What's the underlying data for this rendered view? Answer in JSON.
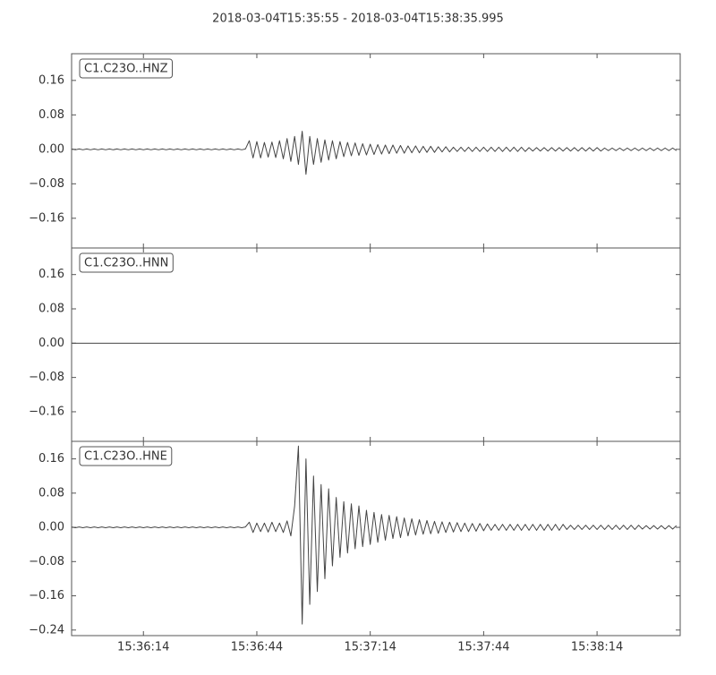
{
  "title": "2018-03-04T15:35:55  -  2018-03-04T15:38:35.995",
  "chart_data": [
    {
      "type": "line",
      "label": "C1.C23O..HNZ",
      "color": "#444444",
      "x": [
        0,
        1,
        2,
        3,
        4,
        5,
        6,
        7,
        8,
        9,
        10,
        11,
        12,
        13,
        14,
        15,
        16,
        17,
        18,
        19,
        20,
        21,
        22,
        23,
        24,
        25,
        26,
        27,
        28,
        29,
        30,
        31,
        32,
        33,
        34,
        35,
        36,
        37,
        38,
        39,
        40,
        41,
        42,
        43,
        44,
        45,
        46,
        47,
        48,
        49,
        50,
        51,
        52,
        53,
        54,
        55,
        56,
        57,
        58,
        59,
        60,
        61,
        62,
        63,
        64,
        65,
        66,
        67,
        68,
        69,
        70,
        71,
        72,
        73,
        74,
        75,
        76,
        77,
        78,
        79,
        80,
        81,
        82,
        83,
        84,
        85,
        86,
        87,
        88,
        89,
        90,
        91,
        92,
        93,
        94,
        95,
        96,
        97,
        98,
        99,
        100,
        101,
        102,
        103,
        104,
        105,
        106,
        107,
        108,
        109,
        110,
        111,
        112,
        113,
        114,
        115,
        116,
        117,
        118,
        119,
        120,
        121,
        122,
        123,
        124,
        125,
        126,
        127,
        128,
        129,
        130,
        131,
        132,
        133,
        134,
        135,
        136,
        137,
        138,
        139,
        140,
        141,
        142,
        143,
        144,
        145,
        146,
        147,
        148,
        149,
        150,
        151,
        152,
        153,
        154,
        155,
        156,
        157,
        158,
        159,
        160
      ],
      "values": [
        0.001,
        -0.001,
        0.001,
        -0.001,
        0.001,
        -0.001,
        0.001,
        -0.001,
        0.001,
        -0.001,
        0.001,
        -0.001,
        0.001,
        -0.001,
        0.001,
        -0.001,
        0.001,
        -0.001,
        0.001,
        -0.001,
        0.001,
        -0.001,
        0.001,
        -0.001,
        0.001,
        -0.001,
        0.001,
        -0.001,
        0.001,
        -0.001,
        0.001,
        -0.001,
        0.001,
        -0.001,
        0.001,
        -0.001,
        0.001,
        -0.001,
        0.001,
        -0.001,
        0.001,
        -0.001,
        0.001,
        -0.001,
        0.001,
        -0.001,
        0.001,
        0.02,
        -0.02,
        0.018,
        -0.02,
        0.016,
        -0.018,
        0.017,
        -0.019,
        0.02,
        -0.022,
        0.025,
        -0.028,
        0.03,
        -0.035,
        0.042,
        -0.058,
        0.03,
        -0.035,
        0.025,
        -0.03,
        0.022,
        -0.025,
        0.02,
        -0.022,
        0.018,
        -0.017,
        0.016,
        -0.015,
        0.015,
        -0.014,
        0.013,
        -0.013,
        0.012,
        -0.012,
        0.011,
        -0.011,
        0.01,
        -0.01,
        0.01,
        -0.009,
        0.009,
        -0.009,
        0.008,
        -0.008,
        0.008,
        -0.008,
        0.007,
        -0.007,
        0.007,
        -0.007,
        0.006,
        -0.006,
        0.006,
        -0.006,
        0.005,
        -0.005,
        0.005,
        -0.005,
        0.005,
        -0.005,
        0.005,
        -0.005,
        0.005,
        -0.005,
        0.005,
        -0.005,
        0.005,
        -0.005,
        0.005,
        -0.005,
        0.005,
        -0.005,
        0.005,
        -0.005,
        0.004,
        -0.004,
        0.004,
        -0.004,
        0.004,
        -0.004,
        0.004,
        -0.004,
        0.004,
        -0.004,
        0.004,
        -0.004,
        0.004,
        -0.004,
        0.004,
        -0.004,
        0.004,
        -0.004,
        0.004,
        -0.004,
        0.003,
        -0.003,
        0.003,
        -0.003,
        0.003,
        -0.003,
        0.003,
        -0.003,
        0.003,
        -0.003,
        0.003,
        -0.003,
        0.003,
        -0.003,
        0.003,
        -0.003,
        0.003,
        -0.003,
        0.003,
        -0.003
      ],
      "xlim": [
        0,
        160.995
      ],
      "ylim": [
        -0.229,
        0.222
      ],
      "yticks": [
        {
          "value": -0.16,
          "label": "−0.16"
        },
        {
          "value": -0.08,
          "label": "−0.08"
        },
        {
          "value": 0,
          "label": "0.00"
        },
        {
          "value": 0.08,
          "label": "0.08"
        },
        {
          "value": 0.16,
          "label": "0.16"
        }
      ]
    },
    {
      "type": "line",
      "label": "C1.C23O..HNN",
      "color": "#444444",
      "x": [
        0,
        1,
        2,
        3,
        4,
        5,
        6,
        7,
        8,
        9,
        10,
        11,
        12,
        13,
        14,
        15,
        16,
        17,
        18,
        19,
        20,
        21,
        22,
        23,
        24,
        25,
        26,
        27,
        28,
        29,
        30,
        31,
        32,
        33,
        34,
        35,
        36,
        37,
        38,
        39,
        40,
        41,
        42,
        43,
        44,
        45,
        46,
        47,
        48,
        49,
        50,
        51,
        52,
        53,
        54,
        55,
        56,
        57,
        58,
        59,
        60,
        61,
        62,
        63,
        64,
        65,
        66,
        67,
        68,
        69,
        70,
        71,
        72,
        73,
        74,
        75,
        76,
        77,
        78,
        79,
        80,
        81,
        82,
        83,
        84,
        85,
        86,
        87,
        88,
        89,
        90,
        91,
        92,
        93,
        94,
        95,
        96,
        97,
        98,
        99,
        100,
        101,
        102,
        103,
        104,
        105,
        106,
        107,
        108,
        109,
        110,
        111,
        112,
        113,
        114,
        115,
        116,
        117,
        118,
        119,
        120,
        121,
        122,
        123,
        124,
        125,
        126,
        127,
        128,
        129,
        130,
        131,
        132,
        133,
        134,
        135,
        136,
        137,
        138,
        139,
        140,
        141,
        142,
        143,
        144,
        145,
        146,
        147,
        148,
        149,
        150,
        151,
        152,
        153,
        154,
        155,
        156,
        157,
        158,
        159,
        160
      ],
      "values": [
        0,
        0,
        0,
        0,
        0,
        0,
        0,
        0,
        0,
        0,
        0,
        0,
        0,
        0,
        0,
        0,
        0,
        0,
        0,
        0,
        0,
        0,
        0,
        0,
        0,
        0,
        0,
        0,
        0,
        0,
        0,
        0,
        0,
        0,
        0,
        0,
        0,
        0,
        0,
        0,
        0,
        0,
        0,
        0,
        0,
        0,
        0,
        0,
        0,
        0,
        0,
        0,
        0,
        0,
        0,
        0,
        0,
        0,
        0,
        0,
        0,
        0,
        0,
        0,
        0,
        0,
        0,
        0,
        0,
        0,
        0,
        0,
        0,
        0,
        0,
        0,
        0,
        0,
        0,
        0,
        0,
        0,
        0,
        0,
        0,
        0,
        0,
        0,
        0,
        0,
        0,
        0,
        0,
        0,
        0,
        0,
        0,
        0,
        0,
        0,
        0,
        0,
        0,
        0,
        0,
        0,
        0,
        0,
        0,
        0,
        0,
        0,
        0,
        0,
        0,
        0,
        0,
        0,
        0,
        0,
        0,
        0,
        0,
        0,
        0,
        0,
        0,
        0,
        0,
        0,
        0,
        0,
        0,
        0,
        0,
        0,
        0,
        0,
        0,
        0,
        0,
        0,
        0,
        0,
        0,
        0,
        0,
        0,
        0,
        0,
        0,
        0,
        0,
        0,
        0,
        0,
        0,
        0,
        0,
        0,
        0
      ],
      "xlim": [
        0,
        160.995
      ],
      "ylim": [
        -0.229,
        0.222
      ],
      "yticks": [
        {
          "value": -0.16,
          "label": "−0.16"
        },
        {
          "value": -0.08,
          "label": "−0.08"
        },
        {
          "value": 0,
          "label": "0.00"
        },
        {
          "value": 0.08,
          "label": "0.08"
        },
        {
          "value": 0.16,
          "label": "0.16"
        }
      ]
    },
    {
      "type": "line",
      "label": "C1.C23O..HNE",
      "color": "#444444",
      "x": [
        0,
        1,
        2,
        3,
        4,
        5,
        6,
        7,
        8,
        9,
        10,
        11,
        12,
        13,
        14,
        15,
        16,
        17,
        18,
        19,
        20,
        21,
        22,
        23,
        24,
        25,
        26,
        27,
        28,
        29,
        30,
        31,
        32,
        33,
        34,
        35,
        36,
        37,
        38,
        39,
        40,
        41,
        42,
        43,
        44,
        45,
        46,
        47,
        48,
        49,
        50,
        51,
        52,
        53,
        54,
        55,
        56,
        57,
        58,
        59,
        60,
        61,
        62,
        63,
        64,
        65,
        66,
        67,
        68,
        69,
        70,
        71,
        72,
        73,
        74,
        75,
        76,
        77,
        78,
        79,
        80,
        81,
        82,
        83,
        84,
        85,
        86,
        87,
        88,
        89,
        90,
        91,
        92,
        93,
        94,
        95,
        96,
        97,
        98,
        99,
        100,
        101,
        102,
        103,
        104,
        105,
        106,
        107,
        108,
        109,
        110,
        111,
        112,
        113,
        114,
        115,
        116,
        117,
        118,
        119,
        120,
        121,
        122,
        123,
        124,
        125,
        126,
        127,
        128,
        129,
        130,
        131,
        132,
        133,
        134,
        135,
        136,
        137,
        138,
        139,
        140,
        141,
        142,
        143,
        144,
        145,
        146,
        147,
        148,
        149,
        150,
        151,
        152,
        153,
        154,
        155,
        156,
        157,
        158,
        159,
        160
      ],
      "values": [
        0.001,
        -0.001,
        0.001,
        -0.001,
        0.001,
        -0.001,
        0.001,
        -0.001,
        0.001,
        -0.001,
        0.001,
        -0.001,
        0.001,
        -0.001,
        0.001,
        -0.001,
        0.001,
        -0.001,
        0.001,
        -0.001,
        0.001,
        -0.001,
        0.001,
        -0.001,
        0.001,
        -0.001,
        0.001,
        -0.001,
        0.001,
        -0.001,
        0.001,
        -0.001,
        0.001,
        -0.001,
        0.001,
        -0.001,
        0.001,
        -0.001,
        0.001,
        -0.001,
        0.001,
        -0.001,
        0.001,
        -0.001,
        0.001,
        -0.001,
        0.001,
        0.012,
        -0.012,
        0.01,
        -0.01,
        0.01,
        -0.011,
        0.012,
        -0.01,
        0.01,
        -0.012,
        0.015,
        -0.02,
        0.05,
        0.19,
        -0.226,
        0.16,
        -0.18,
        0.12,
        -0.15,
        0.1,
        -0.12,
        0.09,
        -0.09,
        0.07,
        -0.07,
        0.06,
        -0.06,
        0.055,
        -0.05,
        0.05,
        -0.045,
        0.04,
        -0.04,
        0.035,
        -0.035,
        0.03,
        -0.03,
        0.028,
        -0.026,
        0.025,
        -0.024,
        0.022,
        -0.02,
        0.02,
        -0.018,
        0.018,
        -0.016,
        0.016,
        -0.015,
        0.014,
        -0.014,
        0.013,
        -0.012,
        0.012,
        -0.011,
        0.011,
        -0.01,
        0.01,
        -0.01,
        0.009,
        -0.009,
        0.009,
        -0.008,
        0.008,
        -0.007,
        0.007,
        -0.007,
        0.007,
        -0.007,
        0.007,
        -0.007,
        0.007,
        -0.007,
        0.007,
        -0.007,
        0.007,
        -0.007,
        0.007,
        -0.007,
        0.007,
        -0.007,
        0.007,
        -0.007,
        0.007,
        -0.005,
        0.005,
        -0.005,
        0.005,
        -0.005,
        0.005,
        -0.005,
        0.005,
        -0.005,
        0.005,
        -0.005,
        0.005,
        -0.005,
        0.005,
        -0.005,
        0.005,
        -0.005,
        0.005,
        -0.005,
        0.005,
        -0.004,
        0.004,
        -0.004,
        0.004,
        -0.004,
        0.004,
        -0.004,
        0.004,
        -0.004,
        0.004
      ],
      "xlim": [
        0,
        160.995
      ],
      "ylim": [
        -0.253,
        0.201
      ],
      "yticks": [
        {
          "value": -0.24,
          "label": "−0.24"
        },
        {
          "value": -0.16,
          "label": "−0.16"
        },
        {
          "value": -0.08,
          "label": "−0.08"
        },
        {
          "value": 0,
          "label": "0.00"
        },
        {
          "value": 0.08,
          "label": "0.08"
        },
        {
          "value": 0.16,
          "label": "0.16"
        }
      ],
      "xticks": [
        {
          "value": 19,
          "label": "15:36:14"
        },
        {
          "value": 49,
          "label": "15:36:44"
        },
        {
          "value": 79,
          "label": "15:37:14"
        },
        {
          "value": 109,
          "label": "15:37:44"
        },
        {
          "value": 139,
          "label": "15:38:14"
        }
      ]
    }
  ]
}
